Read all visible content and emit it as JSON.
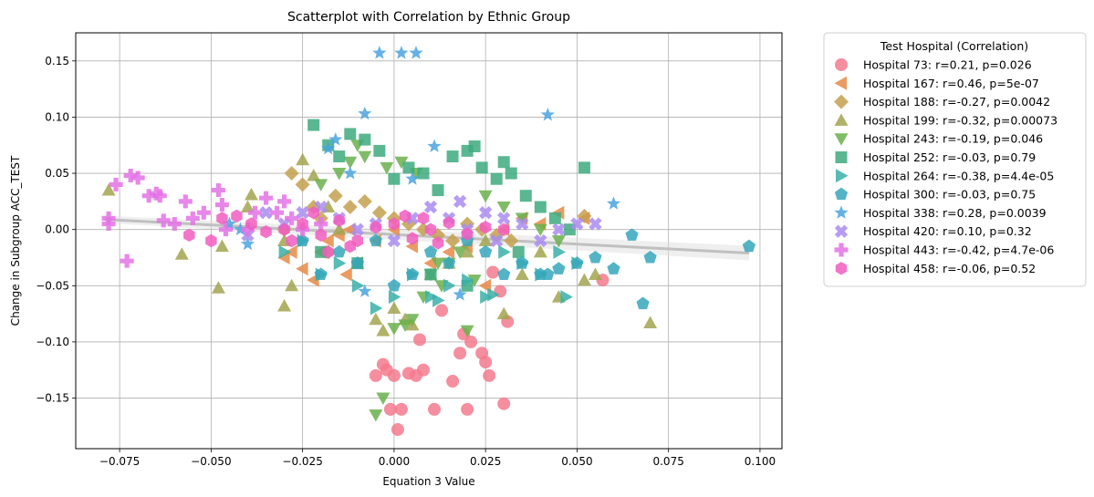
{
  "chart_data": {
    "type": "scatter",
    "title": "Scatterplot with Correlation by Ethnic Group",
    "xlabel": "Equation 3 Value",
    "ylabel": "Change in Subgroup ACC_TEST",
    "xlim": [
      -0.087,
      0.106
    ],
    "ylim": [
      -0.195,
      0.175
    ],
    "xticks": [
      -0.075,
      -0.05,
      -0.025,
      0.0,
      0.025,
      0.05,
      0.075,
      0.1
    ],
    "xtick_labels": [
      "−0.075",
      "−0.050",
      "−0.025",
      "0.000",
      "0.025",
      "0.050",
      "0.075",
      "0.100"
    ],
    "yticks": [
      -0.15,
      -0.1,
      -0.05,
      0.0,
      0.05,
      0.1,
      0.15
    ],
    "ytick_labels": [
      "−0.15",
      "−0.10",
      "−0.05",
      "0.00",
      "0.05",
      "0.10",
      "0.15"
    ],
    "grid": true,
    "legend": {
      "title": "Test Hospital (Correlation)",
      "placement": "outside-right"
    },
    "regression_line": {
      "x": [
        -0.079,
        0.097
      ],
      "y": [
        0.009,
        -0.021
      ],
      "color": "#c0c0c0"
    },
    "series": [
      {
        "name": "Hospital 73: r=0.21, p=0.026",
        "marker": "circle",
        "color": "#f37a8d",
        "x": [
          -0.003,
          -0.002,
          0.0,
          -0.001,
          0.002,
          0.004,
          0.006,
          0.008,
          0.011,
          0.016,
          0.018,
          0.02,
          0.021,
          0.024,
          0.025,
          0.026,
          0.03,
          0.031,
          -0.005,
          0.001,
          0.007,
          0.019,
          0.027,
          0.057,
          0.029,
          0.013
        ],
        "y": [
          -0.12,
          -0.125,
          -0.13,
          -0.16,
          -0.16,
          -0.128,
          -0.13,
          -0.125,
          -0.16,
          -0.135,
          -0.11,
          -0.16,
          -0.1,
          -0.11,
          -0.118,
          -0.13,
          -0.155,
          -0.082,
          -0.13,
          -0.178,
          -0.098,
          -0.093,
          -0.038,
          -0.045,
          -0.055,
          -0.072
        ]
      },
      {
        "name": "Hospital 167: r=0.46, p=5e-07",
        "marker": "triangle-left",
        "color": "#e68a47",
        "x": [
          -0.02,
          -0.018,
          -0.015,
          -0.012,
          -0.03,
          -0.028,
          -0.025,
          -0.01,
          -0.005,
          0.0,
          0.005,
          0.01,
          0.015,
          0.02,
          0.03,
          0.035,
          0.04,
          0.045,
          0.052,
          -0.022,
          -0.013,
          0.025
        ],
        "y": [
          -0.02,
          -0.01,
          -0.005,
          0.0,
          -0.025,
          -0.02,
          -0.035,
          -0.03,
          -0.01,
          0.0,
          -0.015,
          -0.03,
          -0.02,
          -0.015,
          0.0,
          0.01,
          0.005,
          0.015,
          0.01,
          -0.045,
          -0.04,
          -0.05
        ]
      },
      {
        "name": "Hospital 188: r=-0.27, p=0.0042",
        "marker": "diamond",
        "color": "#c4a04f",
        "x": [
          -0.028,
          -0.025,
          -0.022,
          -0.02,
          -0.016,
          -0.012,
          -0.008,
          -0.004,
          0.0,
          0.004,
          0.008,
          0.012,
          0.016,
          0.02,
          0.024,
          0.028,
          0.032,
          -0.03,
          -0.018,
          0.052
        ],
        "y": [
          0.05,
          0.04,
          0.02,
          0.01,
          0.03,
          0.02,
          0.025,
          0.015,
          0.01,
          0.005,
          0.0,
          -0.005,
          -0.01,
          0.005,
          0.0,
          -0.005,
          -0.01,
          0.0,
          -0.02,
          0.012
        ]
      },
      {
        "name": "Hospital 199: r=-0.32, p=0.00073",
        "marker": "triangle-up",
        "color": "#a2a44f",
        "x": [
          -0.078,
          -0.058,
          -0.048,
          -0.047,
          -0.039,
          -0.03,
          -0.028,
          -0.025,
          -0.022,
          -0.018,
          -0.015,
          -0.01,
          -0.005,
          -0.003,
          0.0,
          0.003,
          0.005,
          0.01,
          0.015,
          0.02,
          0.025,
          0.03,
          0.035,
          0.04,
          0.045,
          0.055,
          0.07,
          -0.04,
          -0.03,
          0.052
        ],
        "y": [
          0.035,
          -0.022,
          -0.052,
          -0.015,
          0.031,
          -0.068,
          -0.05,
          0.062,
          0.048,
          0.02,
          0.0,
          -0.03,
          -0.08,
          -0.09,
          -0.07,
          -0.08,
          -0.085,
          -0.04,
          -0.03,
          -0.02,
          -0.01,
          -0.075,
          -0.04,
          -0.02,
          -0.06,
          -0.04,
          -0.083,
          0.02,
          -0.01,
          -0.045
        ]
      },
      {
        "name": "Hospital 243: r=-0.19, p=0.046",
        "marker": "triangle-down",
        "color": "#6ab04c",
        "x": [
          -0.005,
          -0.003,
          0.0,
          0.003,
          0.005,
          0.008,
          0.01,
          0.013,
          0.015,
          0.018,
          0.02,
          -0.01,
          -0.008,
          -0.012,
          -0.015,
          -0.02,
          0.025,
          0.03,
          0.035,
          0.04,
          0.045,
          0.002,
          -0.002,
          0.006,
          0.012,
          0.022
        ],
        "y": [
          -0.165,
          -0.15,
          -0.088,
          -0.085,
          -0.08,
          -0.06,
          -0.04,
          -0.05,
          -0.03,
          -0.02,
          -0.09,
          0.075,
          0.065,
          0.06,
          0.05,
          0.04,
          0.03,
          0.02,
          0.01,
          0.0,
          -0.01,
          0.06,
          0.055,
          0.05,
          -0.03,
          -0.045
        ]
      },
      {
        "name": "Hospital 252: r=-0.03, p=0.79",
        "marker": "square",
        "color": "#3daa7e",
        "x": [
          -0.022,
          -0.018,
          -0.015,
          -0.012,
          -0.008,
          -0.004,
          0.0,
          0.004,
          0.008,
          0.012,
          0.016,
          0.02,
          0.022,
          0.024,
          0.028,
          0.03,
          0.032,
          0.036,
          0.04,
          0.044,
          0.048,
          0.052,
          -0.02,
          -0.01,
          0.01,
          0.02,
          0.034
        ],
        "y": [
          0.093,
          0.075,
          0.065,
          0.085,
          0.08,
          0.07,
          0.045,
          0.055,
          0.05,
          0.035,
          0.065,
          0.07,
          0.074,
          0.055,
          0.045,
          0.06,
          0.05,
          0.03,
          0.02,
          0.01,
          0.0,
          0.055,
          -0.02,
          -0.03,
          -0.04,
          -0.05,
          -0.02
        ]
      },
      {
        "name": "Hospital 264: r=-0.38, p=4.4e-05",
        "marker": "triangle-right",
        "color": "#3ab0a8",
        "x": [
          -0.03,
          -0.02,
          -0.015,
          -0.01,
          -0.005,
          0.0,
          0.005,
          0.01,
          0.015,
          0.02,
          0.025,
          0.03,
          0.035,
          0.04,
          0.045,
          0.05,
          -0.025,
          0.012,
          0.027,
          0.047
        ],
        "y": [
          -0.02,
          -0.04,
          -0.03,
          -0.05,
          -0.07,
          -0.06,
          -0.04,
          -0.06,
          -0.05,
          -0.045,
          -0.06,
          -0.02,
          -0.03,
          -0.04,
          -0.02,
          -0.03,
          -0.01,
          -0.063,
          -0.058,
          -0.06
        ]
      },
      {
        "name": "Hospital 300: r=-0.03, p=0.75",
        "marker": "pentagon",
        "color": "#36a7bb",
        "x": [
          -0.02,
          -0.015,
          -0.01,
          -0.005,
          0.0,
          0.005,
          0.01,
          0.015,
          0.02,
          0.025,
          0.03,
          0.035,
          0.04,
          0.045,
          0.05,
          0.055,
          0.06,
          0.065,
          0.068,
          0.07,
          0.097,
          -0.025,
          0.042
        ],
        "y": [
          -0.04,
          -0.02,
          -0.03,
          -0.01,
          -0.05,
          -0.04,
          -0.02,
          -0.03,
          -0.01,
          -0.02,
          -0.04,
          -0.03,
          -0.04,
          -0.035,
          -0.03,
          -0.025,
          -0.035,
          -0.005,
          -0.066,
          -0.025,
          -0.015,
          -0.01,
          -0.04
        ]
      },
      {
        "name": "Hospital 338: r=0.28, p=0.0039",
        "marker": "star",
        "color": "#4aa3e0",
        "x": [
          -0.004,
          0.002,
          0.006,
          -0.008,
          0.042,
          -0.016,
          0.011,
          -0.018,
          0.06,
          -0.045,
          -0.042,
          -0.04,
          -0.008,
          0.018,
          -0.012,
          0.005
        ],
        "y": [
          0.157,
          0.157,
          0.157,
          0.103,
          0.102,
          0.08,
          0.074,
          0.072,
          0.023,
          0.005,
          0.0,
          -0.013,
          -0.055,
          -0.058,
          0.05,
          0.045
        ]
      },
      {
        "name": "Hospital 420: r=0.10, p=0.32",
        "marker": "x-cross",
        "color": "#a98cf0",
        "x": [
          -0.04,
          -0.03,
          -0.025,
          -0.02,
          -0.015,
          -0.01,
          -0.005,
          0.0,
          0.005,
          0.01,
          0.015,
          0.02,
          0.025,
          0.03,
          0.035,
          0.04,
          0.045,
          0.05,
          0.055,
          0.018,
          0.028,
          -0.035
        ],
        "y": [
          -0.005,
          0.005,
          0.015,
          0.02,
          0.01,
          0.0,
          0.005,
          -0.01,
          0.01,
          0.02,
          0.01,
          0.0,
          0.015,
          0.01,
          0.005,
          -0.01,
          0.0,
          0.005,
          0.005,
          0.025,
          -0.01,
          0.015
        ]
      },
      {
        "name": "Hospital 443: r=-0.42, p=4.7e-06",
        "marker": "plus",
        "color": "#e472e6",
        "x": [
          -0.078,
          -0.076,
          -0.072,
          -0.07,
          -0.067,
          -0.065,
          -0.064,
          -0.063,
          -0.06,
          -0.057,
          -0.055,
          -0.052,
          -0.048,
          -0.047,
          -0.046,
          -0.04,
          -0.038,
          -0.035,
          -0.032,
          -0.03,
          -0.028,
          -0.025,
          -0.02,
          -0.073,
          -0.078
        ],
        "y": [
          0.01,
          0.04,
          0.048,
          0.046,
          0.03,
          0.032,
          0.03,
          0.008,
          0.005,
          0.025,
          0.01,
          0.015,
          0.035,
          0.022,
          0.0,
          0.0,
          0.015,
          0.028,
          0.015,
          0.025,
          0.01,
          0.0,
          0.005,
          -0.028,
          0.005
        ]
      },
      {
        "name": "Hospital 458: r=-0.06, p=0.52",
        "marker": "hexagon",
        "color": "#f15dbf",
        "x": [
          -0.056,
          -0.05,
          -0.047,
          -0.043,
          -0.035,
          -0.03,
          -0.025,
          -0.02,
          -0.015,
          -0.01,
          -0.005,
          0.0,
          0.005,
          0.01,
          0.015,
          0.02,
          0.025,
          0.03,
          -0.022,
          -0.012,
          0.003,
          0.012,
          -0.039,
          -0.028,
          0.008,
          -0.018
        ],
        "y": [
          -0.005,
          -0.01,
          0.01,
          0.012,
          -0.002,
          0.0,
          0.005,
          -0.005,
          0.008,
          -0.01,
          0.002,
          0.005,
          -0.008,
          0.0,
          0.006,
          -0.004,
          0.002,
          0.0,
          0.015,
          -0.015,
          0.012,
          -0.012,
          0.005,
          -0.01,
          0.01,
          -0.02
        ]
      }
    ]
  }
}
